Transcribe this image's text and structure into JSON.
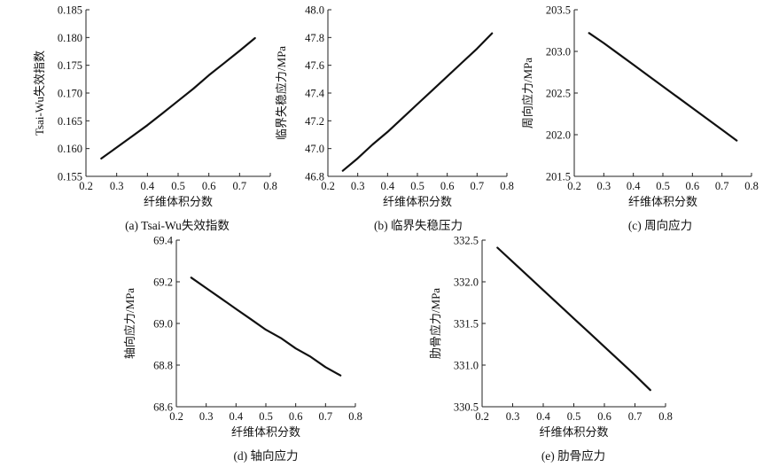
{
  "chart_data": [
    {
      "type": "line",
      "caption": "(a) Tsai-Wu失效指数",
      "xlabel": "纤维体积分数",
      "ylabel": "Tsai-Wu失效指数",
      "xlim": [
        0.2,
        0.8
      ],
      "ylim": [
        0.155,
        0.185
      ],
      "xticks": [
        "0.2",
        "0.3",
        "0.4",
        "0.5",
        "0.6",
        "0.7",
        "0.8"
      ],
      "yticks": [
        "0.155",
        "0.160",
        "0.165",
        "0.170",
        "0.175",
        "0.180",
        "0.185"
      ],
      "series": [
        {
          "x": [
            0.25,
            0.3,
            0.35,
            0.4,
            0.45,
            0.5,
            0.55,
            0.6,
            0.65,
            0.7,
            0.75
          ],
          "y": [
            0.1582,
            0.1602,
            0.1622,
            0.1642,
            0.1664,
            0.1686,
            0.1708,
            0.1732,
            0.1754,
            0.1776,
            0.1799
          ]
        }
      ]
    },
    {
      "type": "line",
      "caption": "(b) 临界失稳压力",
      "xlabel": "纤维体积分数",
      "ylabel": "临界失稳应力/MPa",
      "xlim": [
        0.2,
        0.8
      ],
      "ylim": [
        46.8,
        48.0
      ],
      "xticks": [
        "0.2",
        "0.3",
        "0.4",
        "0.5",
        "0.6",
        "0.7",
        "0.8"
      ],
      "yticks": [
        "46.8",
        "47.0",
        "47.2",
        "47.4",
        "47.6",
        "47.8",
        "48.0"
      ],
      "series": [
        {
          "x": [
            0.25,
            0.3,
            0.35,
            0.4,
            0.45,
            0.5,
            0.55,
            0.6,
            0.65,
            0.7,
            0.75
          ],
          "y": [
            46.84,
            46.93,
            47.03,
            47.12,
            47.22,
            47.32,
            47.42,
            47.52,
            47.62,
            47.72,
            47.83
          ]
        }
      ]
    },
    {
      "type": "line",
      "caption": "(c) 周向应力",
      "xlabel": "纤维体积分数",
      "ylabel": "周向应力/MPa",
      "xlim": [
        0.2,
        0.8
      ],
      "ylim": [
        201.5,
        203.5
      ],
      "xticks": [
        "0.2",
        "0.3",
        "0.4",
        "0.5",
        "0.6",
        "0.7",
        "0.8"
      ],
      "yticks": [
        "201.5",
        "202.0",
        "202.5",
        "203.0",
        "203.5"
      ],
      "series": [
        {
          "x": [
            0.25,
            0.3,
            0.35,
            0.4,
            0.45,
            0.5,
            0.55,
            0.6,
            0.65,
            0.7,
            0.75
          ],
          "y": [
            203.22,
            203.1,
            202.97,
            202.84,
            202.71,
            202.58,
            202.45,
            202.32,
            202.19,
            202.06,
            201.93
          ]
        }
      ]
    },
    {
      "type": "line",
      "caption": "(d) 轴向应力",
      "xlabel": "纤维体积分数",
      "ylabel": "轴向应力/MPa",
      "xlim": [
        0.2,
        0.8
      ],
      "ylim": [
        68.6,
        69.4
      ],
      "xticks": [
        "0.2",
        "0.3",
        "0.4",
        "0.5",
        "0.6",
        "0.7",
        "0.8"
      ],
      "yticks": [
        "68.6",
        "68.8",
        "69.0",
        "69.2",
        "69.4"
      ],
      "series": [
        {
          "x": [
            0.25,
            0.3,
            0.35,
            0.4,
            0.45,
            0.5,
            0.55,
            0.6,
            0.65,
            0.7,
            0.75
          ],
          "y": [
            69.22,
            69.17,
            69.12,
            69.07,
            69.02,
            68.97,
            68.93,
            68.88,
            68.84,
            68.79,
            68.75
          ]
        }
      ]
    },
    {
      "type": "line",
      "caption": "(e) 肋骨应力",
      "xlabel": "纤维体积分数",
      "ylabel": "肋骨应力/MPa",
      "xlim": [
        0.2,
        0.8
      ],
      "ylim": [
        330.5,
        332.5
      ],
      "xticks": [
        "0.2",
        "0.3",
        "0.4",
        "0.5",
        "0.6",
        "0.7",
        "0.8"
      ],
      "yticks": [
        "330.5",
        "331.0",
        "331.5",
        "332.0",
        "332.5"
      ],
      "series": [
        {
          "x": [
            0.25,
            0.3,
            0.35,
            0.4,
            0.45,
            0.5,
            0.55,
            0.6,
            0.65,
            0.7,
            0.75
          ],
          "y": [
            332.41,
            332.24,
            332.07,
            331.9,
            331.73,
            331.56,
            331.39,
            331.22,
            331.05,
            330.88,
            330.7
          ]
        }
      ]
    }
  ]
}
